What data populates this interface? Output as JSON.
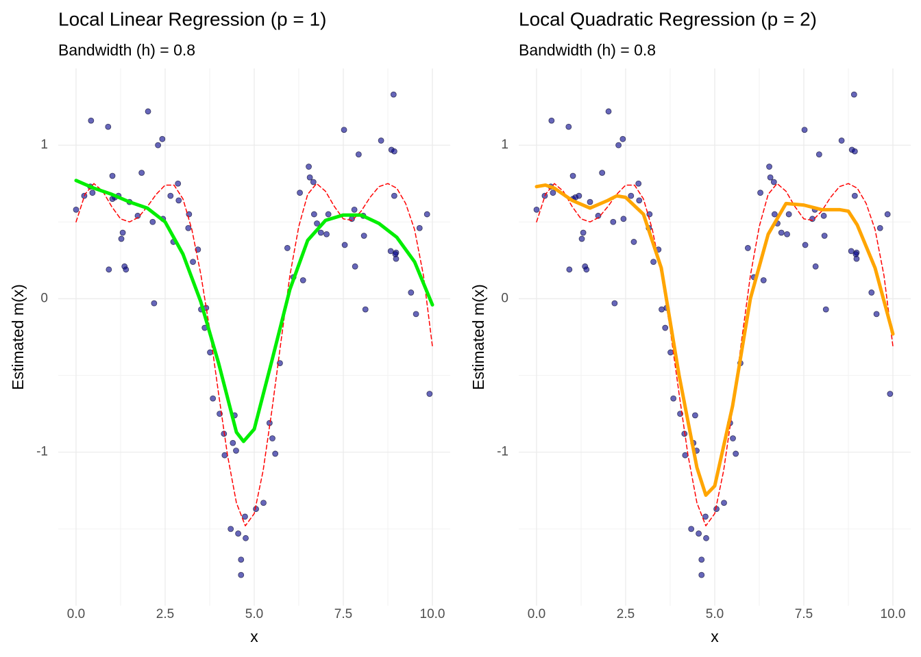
{
  "chart_data": [
    {
      "type": "scatter",
      "title": "Local Linear Regression (p = 1)",
      "subtitle": "Bandwidth (h) = 0.8",
      "xlabel": "x",
      "ylabel": "Estimated m(x)",
      "xlim": [
        -0.5,
        10.5
      ],
      "ylim": [
        -2.0,
        1.5
      ],
      "xticks": [
        {
          "value": 0,
          "label": "0.0"
        },
        {
          "value": 2.5,
          "label": "2.5"
        },
        {
          "value": 5,
          "label": "5.0"
        },
        {
          "value": 7.5,
          "label": "7.5"
        },
        {
          "value": 10,
          "label": "10.0"
        }
      ],
      "yticks": [
        -1,
        0,
        1
      ],
      "minor_xticks": [
        1.25,
        3.75,
        6.25,
        8.75
      ],
      "minor_yticks": [
        -1.5,
        -0.5,
        0.5
      ],
      "grid": true,
      "series": [
        {
          "kind": "points",
          "color": "#00008b",
          "alpha": 0.6,
          "x": [
            0.0,
            0.23,
            0.42,
            0.4,
            0.46,
            0.9,
            0.92,
            1.02,
            1.02,
            1.09,
            1.19,
            1.27,
            1.31,
            1.36,
            1.4,
            1.5,
            1.73,
            1.84,
            2.02,
            2.15,
            2.19,
            2.3,
            2.42,
            2.44,
            2.65,
            2.73,
            2.86,
            2.88,
            3.17,
            3.15,
            3.28,
            3.42,
            3.51,
            3.61,
            3.65,
            3.76,
            3.84,
            4.03,
            4.15,
            4.17,
            4.34,
            4.4,
            4.45,
            4.49,
            4.55,
            4.63,
            4.63,
            4.74,
            4.76,
            5.05,
            5.26,
            5.43,
            5.51,
            5.59,
            5.72,
            5.93,
            6.1,
            6.37,
            6.28,
            6.53,
            6.56,
            6.66,
            6.68,
            6.76,
            6.87,
            7.03,
            7.08,
            7.52,
            7.54,
            7.74,
            7.81,
            7.83,
            7.93,
            8.08,
            8.12,
            8.06,
            8.56,
            8.83,
            8.85,
            8.91,
            8.93,
            8.93,
            8.98,
            8.98,
            8.96,
            9.4,
            9.54,
            9.64,
            9.85,
            9.92
          ],
          "values": [
            0.58,
            0.67,
            1.16,
            0.73,
            0.69,
            1.12,
            0.19,
            0.8,
            0.65,
            0.66,
            0.67,
            0.39,
            0.43,
            0.21,
            0.19,
            0.63,
            0.54,
            0.82,
            1.22,
            0.5,
            -0.03,
            1.0,
            1.04,
            0.52,
            0.67,
            0.37,
            0.75,
            0.64,
            0.55,
            0.46,
            0.24,
            0.32,
            -0.07,
            -0.19,
            -0.06,
            -0.35,
            -0.65,
            -0.75,
            -0.88,
            -1.02,
            -1.5,
            -0.94,
            -0.76,
            -0.99,
            -1.53,
            -1.7,
            -1.8,
            -1.42,
            -1.56,
            -1.37,
            -1.33,
            -0.81,
            -0.91,
            -1.01,
            -0.42,
            0.33,
            0.14,
            0.12,
            0.69,
            0.86,
            0.79,
            0.76,
            0.55,
            0.49,
            0.43,
            0.42,
            0.55,
            1.1,
            0.35,
            0.52,
            0.58,
            0.21,
            0.94,
            0.41,
            -0.07,
            0.54,
            1.03,
            0.31,
            0.97,
            1.33,
            0.96,
            0.67,
            0.3,
            0.26,
            0.29,
            0.04,
            -0.1,
            0.46,
            0.55,
            -0.62
          ]
        },
        {
          "kind": "line",
          "color": "#ff0000",
          "dash": true,
          "width": 1.5,
          "x": [
            0,
            0.25,
            0.5,
            0.75,
            1,
            1.25,
            1.5,
            1.75,
            2,
            2.25,
            2.5,
            2.75,
            3,
            3.25,
            3.5,
            3.75,
            4,
            4.25,
            4.5,
            4.75,
            5,
            5.25,
            5.5,
            5.75,
            6,
            6.25,
            6.5,
            6.75,
            7,
            7.25,
            7.5,
            7.75,
            8,
            8.25,
            8.5,
            8.75,
            9,
            9.25,
            9.5,
            9.75,
            10
          ],
          "values": [
            0.5,
            0.68,
            0.75,
            0.7,
            0.6,
            0.52,
            0.5,
            0.53,
            0.6,
            0.68,
            0.74,
            0.74,
            0.65,
            0.45,
            0.16,
            -0.2,
            -0.62,
            -1.02,
            -1.33,
            -1.48,
            -1.4,
            -1.12,
            -0.72,
            -0.28,
            0.15,
            0.47,
            0.68,
            0.75,
            0.7,
            0.6,
            0.52,
            0.51,
            0.57,
            0.66,
            0.73,
            0.75,
            0.72,
            0.62,
            0.45,
            0.15,
            -0.31
          ]
        },
        {
          "kind": "line",
          "color": "#00ee00",
          "dash": false,
          "width": 5,
          "x": [
            0,
            0.5,
            1,
            1.5,
            2,
            2.5,
            3,
            3.5,
            4,
            4.5,
            4.7,
            5,
            5.5,
            6,
            6.5,
            7,
            7.5,
            8,
            8.5,
            9,
            9.5,
            10
          ],
          "values": [
            0.77,
            0.72,
            0.68,
            0.63,
            0.59,
            0.5,
            0.29,
            -0.02,
            -0.42,
            -0.87,
            -0.93,
            -0.85,
            -0.4,
            0.06,
            0.38,
            0.51,
            0.545,
            0.545,
            0.49,
            0.4,
            0.24,
            -0.04
          ]
        }
      ]
    },
    {
      "type": "scatter",
      "title": "Local Quadratic Regression (p = 2)",
      "subtitle": "Bandwidth (h) = 0.8",
      "xlabel": "x",
      "ylabel": "Estimated m(x)",
      "xlim": [
        -0.5,
        10.5
      ],
      "ylim": [
        -2.0,
        1.5
      ],
      "xticks": [
        {
          "value": 0,
          "label": "0.0"
        },
        {
          "value": 2.5,
          "label": "2.5"
        },
        {
          "value": 5,
          "label": "5.0"
        },
        {
          "value": 7.5,
          "label": "7.5"
        },
        {
          "value": 10,
          "label": "10.0"
        }
      ],
      "yticks": [
        -1,
        0,
        1
      ],
      "minor_xticks": [
        1.25,
        3.75,
        6.25,
        8.75
      ],
      "minor_yticks": [
        -1.5,
        -0.5,
        0.5
      ],
      "grid": true,
      "series": [
        {
          "kind": "points",
          "color": "#00008b",
          "alpha": 0.6,
          "x": [
            0.0,
            0.23,
            0.42,
            0.4,
            0.46,
            0.9,
            0.92,
            1.02,
            1.02,
            1.09,
            1.19,
            1.27,
            1.31,
            1.36,
            1.4,
            1.5,
            1.73,
            1.84,
            2.02,
            2.15,
            2.19,
            2.3,
            2.42,
            2.44,
            2.65,
            2.73,
            2.86,
            2.88,
            3.17,
            3.15,
            3.28,
            3.42,
            3.51,
            3.61,
            3.65,
            3.76,
            3.84,
            4.03,
            4.15,
            4.17,
            4.34,
            4.4,
            4.45,
            4.49,
            4.55,
            4.63,
            4.63,
            4.74,
            4.76,
            5.05,
            5.26,
            5.43,
            5.51,
            5.59,
            5.72,
            5.93,
            6.1,
            6.37,
            6.28,
            6.53,
            6.56,
            6.66,
            6.68,
            6.76,
            6.87,
            7.03,
            7.08,
            7.52,
            7.54,
            7.74,
            7.81,
            7.83,
            7.93,
            8.08,
            8.12,
            8.06,
            8.56,
            8.83,
            8.85,
            8.91,
            8.93,
            8.93,
            8.98,
            8.98,
            8.96,
            9.4,
            9.54,
            9.64,
            9.85,
            9.92
          ],
          "values": [
            0.58,
            0.67,
            1.16,
            0.73,
            0.69,
            1.12,
            0.19,
            0.8,
            0.65,
            0.66,
            0.67,
            0.39,
            0.43,
            0.21,
            0.19,
            0.63,
            0.54,
            0.82,
            1.22,
            0.5,
            -0.03,
            1.0,
            1.04,
            0.52,
            0.67,
            0.37,
            0.75,
            0.64,
            0.55,
            0.46,
            0.24,
            0.32,
            -0.07,
            -0.19,
            -0.06,
            -0.35,
            -0.65,
            -0.75,
            -0.88,
            -1.02,
            -1.5,
            -0.94,
            -0.76,
            -0.99,
            -1.53,
            -1.7,
            -1.8,
            -1.42,
            -1.56,
            -1.37,
            -1.33,
            -0.81,
            -0.91,
            -1.01,
            -0.42,
            0.33,
            0.14,
            0.12,
            0.69,
            0.86,
            0.79,
            0.76,
            0.55,
            0.49,
            0.43,
            0.42,
            0.55,
            1.1,
            0.35,
            0.52,
            0.58,
            0.21,
            0.94,
            0.41,
            -0.07,
            0.54,
            1.03,
            0.31,
            0.97,
            1.33,
            0.96,
            0.67,
            0.3,
            0.26,
            0.29,
            0.04,
            -0.1,
            0.46,
            0.55,
            -0.62
          ]
        },
        {
          "kind": "line",
          "color": "#ff0000",
          "dash": true,
          "width": 1.5,
          "x": [
            0,
            0.25,
            0.5,
            0.75,
            1,
            1.25,
            1.5,
            1.75,
            2,
            2.25,
            2.5,
            2.75,
            3,
            3.25,
            3.5,
            3.75,
            4,
            4.25,
            4.5,
            4.75,
            5,
            5.25,
            5.5,
            5.75,
            6,
            6.25,
            6.5,
            6.75,
            7,
            7.25,
            7.5,
            7.75,
            8,
            8.25,
            8.5,
            8.75,
            9,
            9.25,
            9.5,
            9.75,
            10
          ],
          "values": [
            0.5,
            0.68,
            0.75,
            0.7,
            0.6,
            0.52,
            0.5,
            0.53,
            0.6,
            0.68,
            0.74,
            0.74,
            0.65,
            0.45,
            0.16,
            -0.2,
            -0.62,
            -1.02,
            -1.33,
            -1.48,
            -1.4,
            -1.12,
            -0.72,
            -0.28,
            0.15,
            0.47,
            0.68,
            0.75,
            0.7,
            0.6,
            0.52,
            0.51,
            0.57,
            0.66,
            0.73,
            0.75,
            0.72,
            0.62,
            0.45,
            0.15,
            -0.31
          ]
        },
        {
          "kind": "line",
          "color": "#ffa500",
          "dash": false,
          "width": 5,
          "x": [
            0,
            0.25,
            0.5,
            1,
            1.5,
            2,
            2.25,
            2.5,
            3,
            3.5,
            4,
            4.5,
            4.75,
            5,
            5.5,
            6,
            6.5,
            7,
            7.5,
            8,
            8.5,
            8.75,
            9,
            9.5,
            10
          ],
          "values": [
            0.73,
            0.74,
            0.72,
            0.64,
            0.59,
            0.64,
            0.67,
            0.66,
            0.55,
            0.2,
            -0.5,
            -1.1,
            -1.28,
            -1.22,
            -0.7,
            0.0,
            0.42,
            0.62,
            0.61,
            0.58,
            0.58,
            0.57,
            0.48,
            0.2,
            -0.23
          ]
        }
      ]
    }
  ]
}
